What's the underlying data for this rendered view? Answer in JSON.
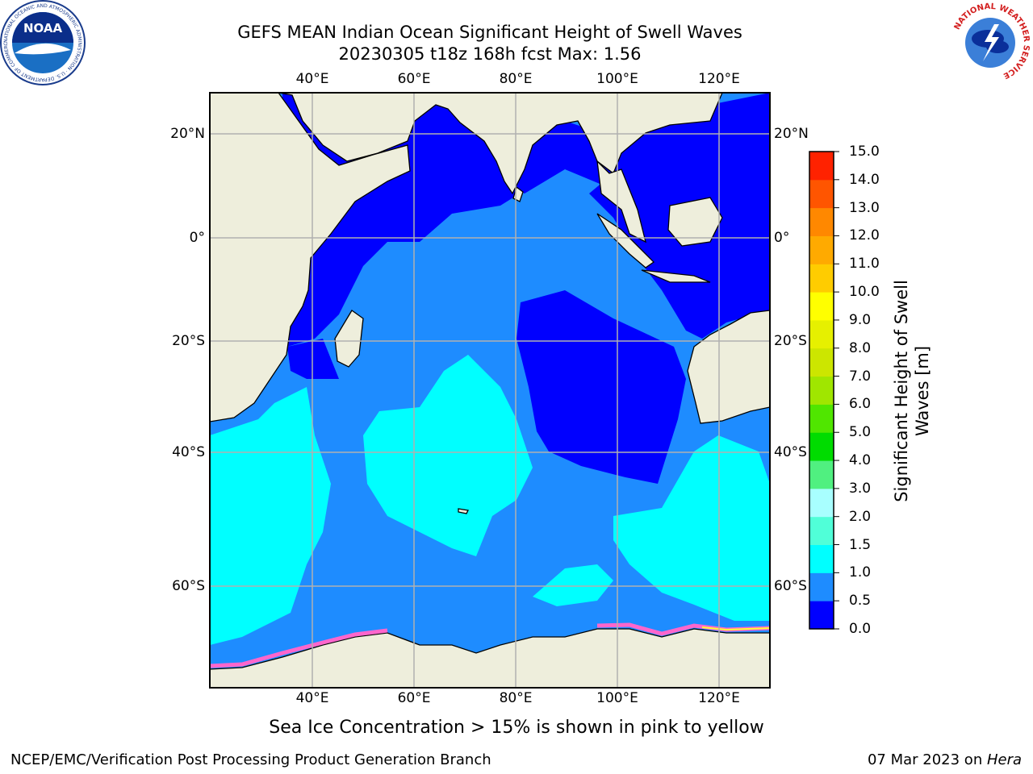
{
  "title": {
    "line1": "GEFS MEAN Indian Ocean Significant Height of Swell Waves",
    "line2": "20230305 t18z 168h fcst   Max: 1.56"
  },
  "map": {
    "lon_ticks": [
      "40°E",
      "60°E",
      "80°E",
      "100°E",
      "120°E"
    ],
    "lat_ticks": [
      "20°N",
      "0°",
      "20°S",
      "40°S",
      "60°S"
    ],
    "lon_range": [
      20,
      130
    ],
    "lat_range": [
      -72,
      28
    ],
    "land_color": "#eeeedc",
    "grid_color": "#b0b0b0"
  },
  "colorbar": {
    "title_line1": "Significant Height of Swell",
    "title_line2": "Waves [m]",
    "labels": [
      "0.0",
      "0.5",
      "1.0",
      "1.5",
      "2.0",
      "3.0",
      "4.0",
      "5.0",
      "6.0",
      "7.0",
      "8.0",
      "9.0",
      "10.0",
      "11.0",
      "12.0",
      "13.0",
      "14.0",
      "15.0"
    ],
    "colors": [
      "#0000ff",
      "#1e8cff",
      "#00ffff",
      "#50ffd8",
      "#a8ffff",
      "#50f080",
      "#00dc00",
      "#50e600",
      "#a0e600",
      "#cce600",
      "#e6f000",
      "#ffff00",
      "#ffcc00",
      "#ffaa00",
      "#ff8800",
      "#ff5500",
      "#ff2200"
    ]
  },
  "ice_note": "Sea Ice Concentration > 15% is shown in pink to yellow",
  "footer": {
    "left": "NCEP/EMC/Verification Post Processing Product Generation Branch",
    "right_date": "07 Mar 2023 on ",
    "right_machine": "Hera"
  },
  "logos": {
    "noaa": "NOAA",
    "noaa_ring": "NATIONAL OCEANIC AND ATMOSPHERIC ADMINISTRATION · U.S. DEPARTMENT OF COMMERCE",
    "nws_ring": "NATIONAL WEATHER SERVICE"
  }
}
